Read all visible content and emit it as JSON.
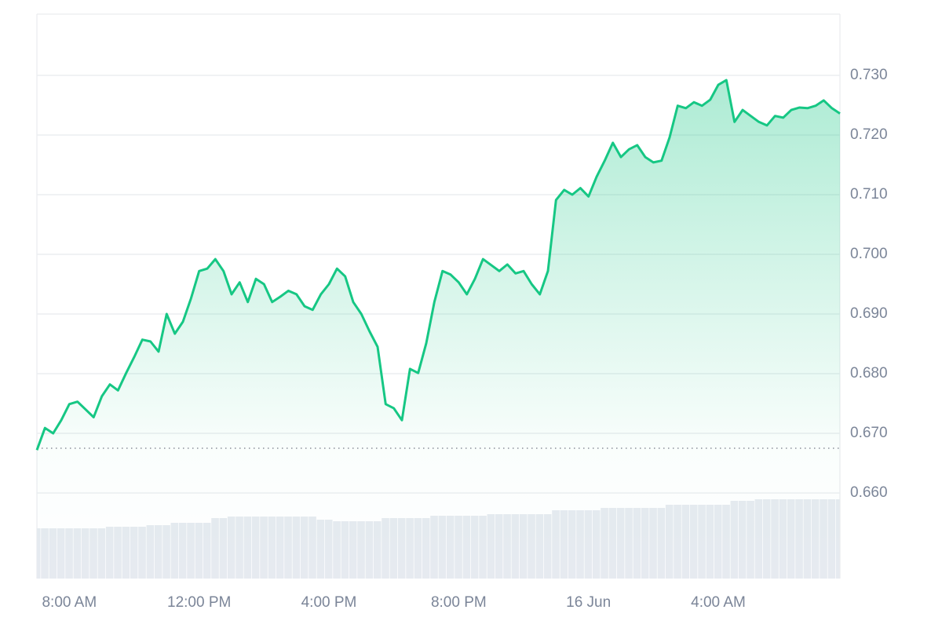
{
  "chart_data": {
    "type": "area",
    "x": [
      7,
      7.25,
      7.5,
      7.75,
      8,
      8.25,
      8.5,
      8.75,
      9,
      9.25,
      9.5,
      9.75,
      10,
      10.25,
      10.5,
      10.75,
      11,
      11.25,
      11.5,
      11.75,
      12,
      12.25,
      12.5,
      12.75,
      13,
      13.25,
      13.5,
      13.75,
      14,
      14.25,
      14.5,
      14.75,
      15,
      15.25,
      15.5,
      15.75,
      16,
      16.25,
      16.5,
      16.75,
      17,
      17.25,
      17.5,
      17.75,
      18,
      18.25,
      18.5,
      18.75,
      19,
      19.25,
      19.5,
      19.75,
      20,
      20.25,
      20.5,
      20.75,
      21,
      21.25,
      21.5,
      21.75,
      22,
      22.25,
      22.5,
      22.75,
      23,
      23.25,
      23.5,
      23.75,
      24,
      24.25,
      24.5,
      24.75,
      25,
      25.25,
      25.5,
      25.75,
      26,
      26.25,
      26.5,
      26.75,
      27,
      27.25,
      27.5,
      27.75,
      28,
      28.25,
      28.5,
      28.75,
      29,
      29.25,
      29.5,
      29.75,
      30,
      30.25,
      30.5,
      30.75,
      31,
      31.25,
      31.5,
      31.75
    ],
    "values": [
      0.6672,
      0.6709,
      0.67,
      0.6722,
      0.6749,
      0.6753,
      0.674,
      0.6727,
      0.6762,
      0.6782,
      0.6772,
      0.6801,
      0.6828,
      0.6857,
      0.6854,
      0.6837,
      0.69,
      0.6867,
      0.6887,
      0.6926,
      0.6972,
      0.6976,
      0.6992,
      0.6972,
      0.6933,
      0.6953,
      0.692,
      0.6959,
      0.695,
      0.692,
      0.6929,
      0.6939,
      0.6933,
      0.6913,
      0.6907,
      0.6933,
      0.695,
      0.6976,
      0.6963,
      0.692,
      0.69,
      0.6871,
      0.6845,
      0.6749,
      0.6742,
      0.6722,
      0.6808,
      0.6801,
      0.6851,
      0.692,
      0.6972,
      0.6966,
      0.6953,
      0.6933,
      0.6959,
      0.6992,
      0.6982,
      0.6972,
      0.6983,
      0.6968,
      0.6972,
      0.695,
      0.6933,
      0.6972,
      0.7091,
      0.7108,
      0.71,
      0.7111,
      0.7097,
      0.713,
      0.7157,
      0.7187,
      0.7163,
      0.7176,
      0.7183,
      0.7163,
      0.7154,
      0.7157,
      0.7196,
      0.7249,
      0.7245,
      0.7255,
      0.7249,
      0.7259,
      0.7284,
      0.7292,
      0.7222,
      0.7242,
      0.7232,
      0.7222,
      0.7216,
      0.7232,
      0.7229,
      0.7242,
      0.7246,
      0.7245,
      0.7249,
      0.7258,
      0.7245,
      0.7236
    ],
    "color": "#16c784",
    "reference": 0.6675,
    "volume": {
      "color": "#e6eaf0",
      "ylim": [
        0,
        110
      ],
      "values": [
        64,
        64,
        64,
        64,
        64,
        64,
        64,
        64,
        64,
        66,
        66,
        66,
        66,
        66,
        68,
        68,
        68,
        71,
        71,
        71,
        71,
        71,
        77,
        77,
        79,
        79,
        79,
        79,
        79,
        79,
        79,
        79,
        79,
        79,
        79,
        75,
        75,
        73,
        73,
        73,
        73,
        73,
        73,
        77,
        77,
        77,
        77,
        77,
        77,
        80,
        80,
        80,
        80,
        80,
        80,
        80,
        82,
        82,
        82,
        82,
        82,
        82,
        82,
        82,
        87,
        87,
        87,
        87,
        87,
        87,
        90,
        90,
        90,
        90,
        90,
        90,
        90,
        90,
        94,
        94,
        94,
        94,
        94,
        94,
        94,
        94,
        99,
        99,
        99,
        101,
        101,
        101,
        101,
        101,
        101,
        101,
        101,
        101,
        101,
        101
      ]
    },
    "xlim": [
      7,
      31.75
    ],
    "xticks": [
      {
        "value": 8,
        "label": "8:00 AM"
      },
      {
        "value": 12,
        "label": "12:00 PM"
      },
      {
        "value": 16,
        "label": "4:00 PM"
      },
      {
        "value": 20,
        "label": "8:00 PM"
      },
      {
        "value": 24,
        "label": "16 Jun"
      },
      {
        "value": 28,
        "label": "4:00 AM"
      }
    ],
    "ylim": [
      0.64566,
      0.74026
    ],
    "yticks": [
      {
        "value": 0.66,
        "label": "0.660"
      },
      {
        "value": 0.67,
        "label": "0.670"
      },
      {
        "value": 0.68,
        "label": "0.680"
      },
      {
        "value": 0.69,
        "label": "0.690"
      },
      {
        "value": 0.7,
        "label": "0.700"
      },
      {
        "value": 0.71,
        "label": "0.710"
      },
      {
        "value": 0.72,
        "label": "0.720"
      },
      {
        "value": 0.73,
        "label": "0.730"
      }
    ],
    "grid": true
  }
}
